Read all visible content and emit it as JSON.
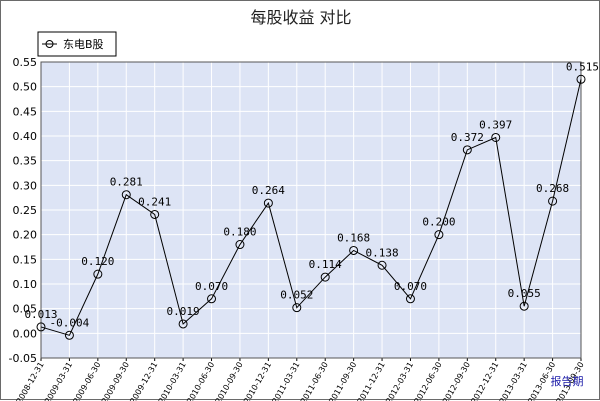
{
  "chart_data": {
    "type": "line",
    "title": "每股收益  对比",
    "xlabel": "报告期",
    "ylabel": "",
    "ylim": [
      -0.05,
      0.55
    ],
    "yticks": [
      "-0.05",
      "0.00",
      "0.05",
      "0.10",
      "0.15",
      "0.20",
      "0.25",
      "0.30",
      "0.35",
      "0.40",
      "0.45",
      "0.50",
      "0.55"
    ],
    "grid": true,
    "legend_position": "top-left",
    "categories": [
      "2008-12-31",
      "2009-03-31",
      "2009-06-30",
      "2009-09-30",
      "2009-12-31",
      "2010-03-31",
      "2010-06-30",
      "2010-09-30",
      "2010-12-31",
      "2011-03-31",
      "2011-06-30",
      "2011-09-30",
      "2011-12-31",
      "2012-03-31",
      "2012-06-30",
      "2012-09-30",
      "2012-12-31",
      "2013-03-31",
      "2013-06-30",
      "2013-09-30"
    ],
    "series": [
      {
        "name": "东电B股",
        "values": [
          0.013,
          -0.004,
          0.12,
          0.281,
          0.241,
          0.019,
          0.07,
          0.18,
          0.264,
          0.052,
          0.114,
          0.168,
          0.138,
          0.07,
          0.2,
          0.372,
          0.397,
          0.055,
          0.268,
          0.515
        ],
        "labels": [
          "0.013",
          "-0.004",
          "0.120",
          "0.281",
          "0.241",
          "0.019",
          "0.070",
          "0.180",
          "0.264",
          "0.052",
          "0.114",
          "0.168",
          "0.138",
          "0.070",
          "0.200",
          "0.372",
          "0.397",
          "0.055",
          "0.268",
          "0.515"
        ]
      }
    ],
    "colors": {
      "plot_bg": "#dde4f5",
      "grid": "#ffffff",
      "line": "#000000",
      "marker": "#000000",
      "axis_label": "#1a1aa8"
    }
  }
}
